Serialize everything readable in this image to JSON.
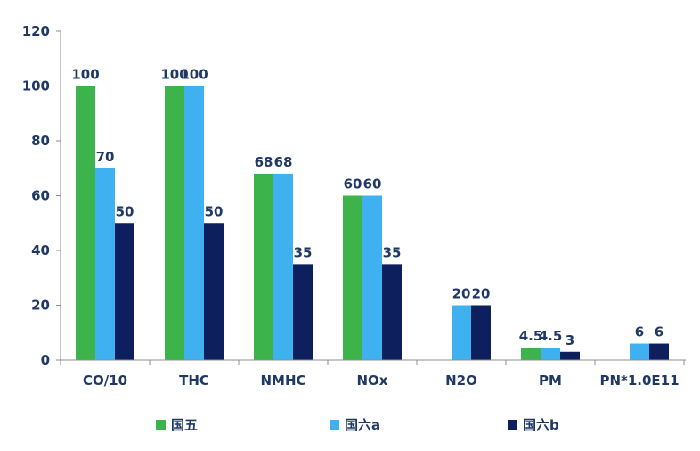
{
  "chart_data": {
    "type": "bar",
    "categories": [
      "CO/10",
      "THC",
      "NMHC",
      "NOx",
      "N2O",
      "PM",
      "PN*1.0E11"
    ],
    "series": [
      {
        "name": "国五",
        "color": "#3cb44b",
        "values": [
          100,
          100,
          68,
          60,
          null,
          4.5,
          null
        ]
      },
      {
        "name": "国六a",
        "color": "#3fb0f0",
        "values": [
          70,
          100,
          68,
          60,
          20,
          4.5,
          6
        ]
      },
      {
        "name": "国六b",
        "color": "#0d1f5c",
        "values": [
          50,
          50,
          35,
          35,
          20,
          3,
          6
        ]
      }
    ],
    "ylim": [
      0,
      120
    ],
    "yticks": [
      0,
      20,
      40,
      60,
      80,
      100,
      120
    ],
    "legend_position": "bottom",
    "grid": false
  }
}
